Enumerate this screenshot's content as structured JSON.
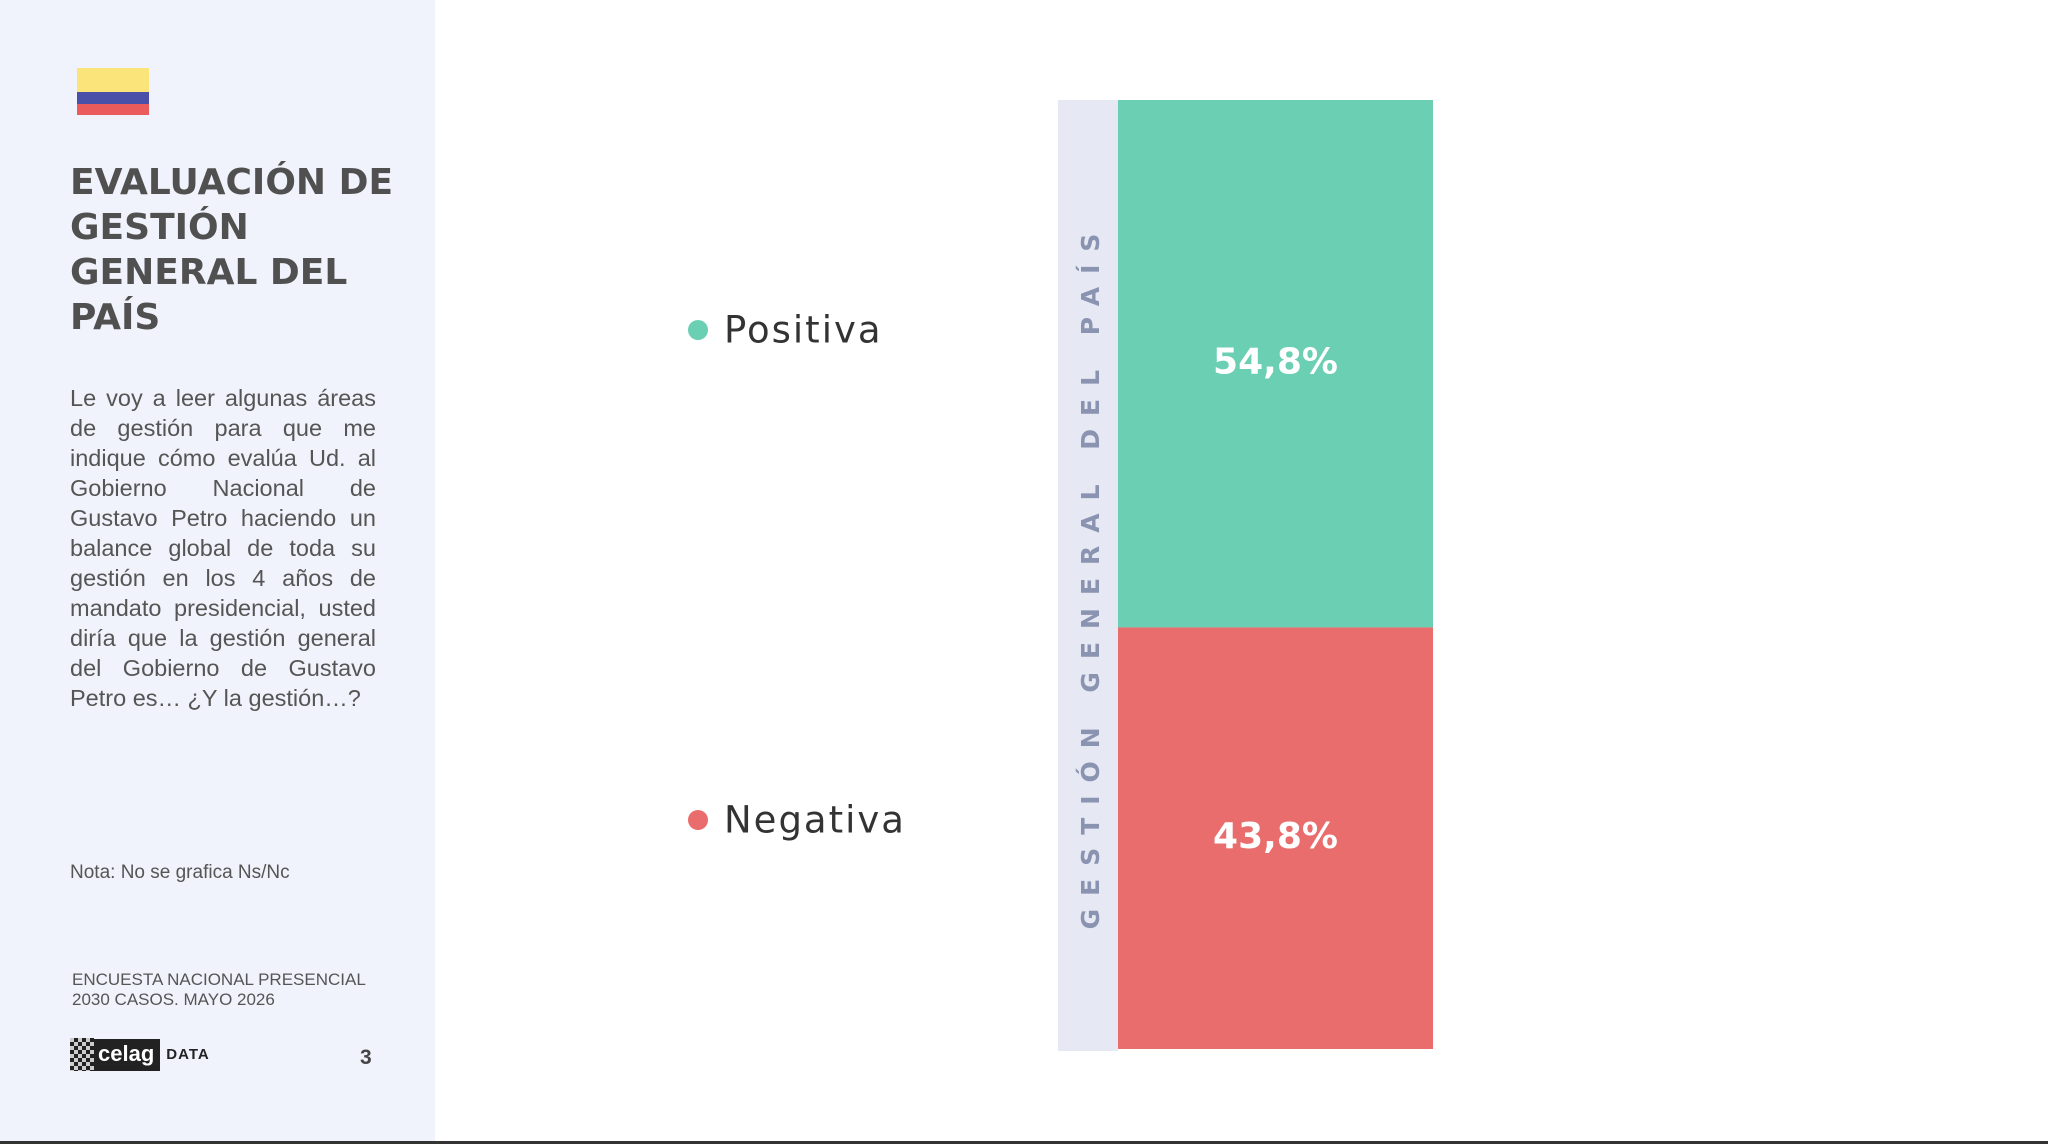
{
  "sidebar": {
    "title": "EVALUACIÓN DE GESTIÓN GENERAL DEL PAÍS",
    "question": "Le voy a leer algunas áreas de gestión para que me indique cómo evalúa Ud. al Gobierno Nacional de Gustavo Petro haciendo un balance global de toda su gestión en los 4 años de mandato presidencial, usted diría que la gestión general del Gobierno de Gustavo Petro es… ¿Y la gestión…?",
    "note": "Nota: No se grafica Ns/Nc",
    "survey_line1": "ENCUESTA NACIONAL PRESENCIAL",
    "survey_line2": "2030 CASOS. MAYO 2026",
    "logo_name": "celag",
    "logo_suffix": "DATA",
    "page_number": "3"
  },
  "chart_data": {
    "type": "stacked_bar",
    "categories": [
      "GESTIÓN GENERAL DEL PAÍS"
    ],
    "series": [
      {
        "name": "Positiva",
        "color": "#6bcfb3",
        "values": [
          54.8
        ],
        "value_labels": [
          "54,8%"
        ]
      },
      {
        "name": "Negativa",
        "color": "#e96d6d",
        "values": [
          43.8
        ],
        "value_labels": [
          "43,8%"
        ]
      }
    ]
  }
}
